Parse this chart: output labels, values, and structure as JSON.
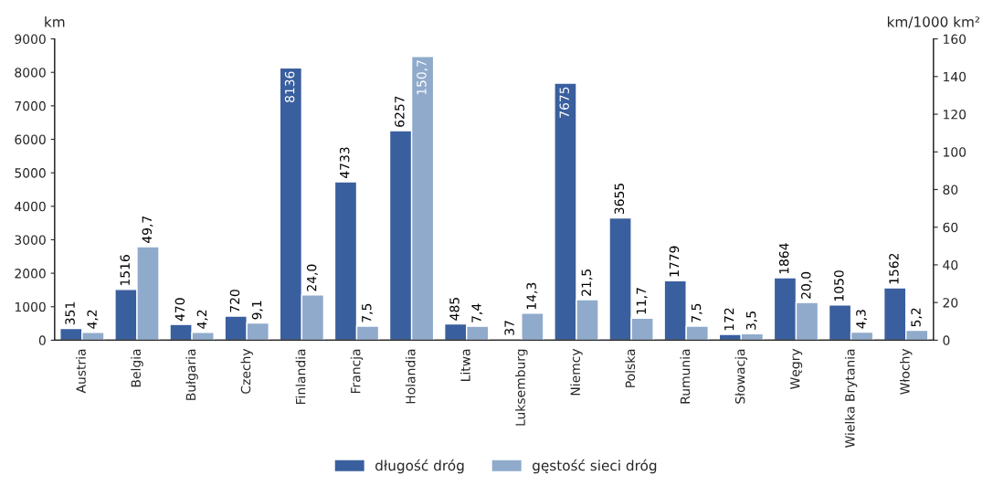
{
  "chart_data": {
    "type": "bar",
    "categories": [
      "Austria",
      "Belgia",
      "Bułgaria",
      "Czechy",
      "Finlandia",
      "Francja",
      "Holandia",
      "Litwa",
      "Luksemburg",
      "Niemcy",
      "Polska",
      "Rumunia",
      "Słowacja",
      "Węgry",
      "Wielka Brytania",
      "Włochy"
    ],
    "ylabel": "km",
    "y2label": "km/1000 km²",
    "series": [
      {
        "name": "długość dróg",
        "color": "#3a5f9e",
        "values": [
          351,
          1516,
          470,
          720,
          8136,
          4733,
          6257,
          485,
          37,
          7675,
          3655,
          1779,
          172,
          1864,
          1050,
          1562
        ],
        "value_labels": [
          "351",
          "1516",
          "470",
          "720",
          "8136",
          "4733",
          "6257",
          "485",
          "37",
          "7675",
          "3655",
          "1779",
          "172",
          "1864",
          "1050",
          "1562"
        ]
      },
      {
        "name": "gęstość sieci dróg",
        "color": "#8faacb",
        "axis": "y2",
        "values": [
          4.2,
          49.7,
          4.2,
          9.1,
          24.0,
          7.5,
          150.7,
          7.4,
          14.3,
          21.5,
          11.7,
          7.5,
          3.5,
          20.0,
          4.3,
          5.2
        ],
        "value_labels": [
          "4,2",
          "49,7",
          "4,2",
          "9,1",
          "24,0",
          "7,5",
          "150,7",
          "7,4",
          "14,3",
          "21,5",
          "11,7",
          "7,5",
          "3,5",
          "20,0",
          "4,3",
          "5,2"
        ]
      }
    ],
    "ylim": [
      0,
      9000
    ],
    "yticks": [
      0,
      1000,
      2000,
      3000,
      4000,
      5000,
      6000,
      7000,
      8000,
      9000
    ],
    "y2lim": [
      0,
      160
    ],
    "y2ticks": [
      0,
      20,
      40,
      60,
      80,
      100,
      120,
      140,
      160
    ],
    "grid": false,
    "legend": "bottom"
  }
}
